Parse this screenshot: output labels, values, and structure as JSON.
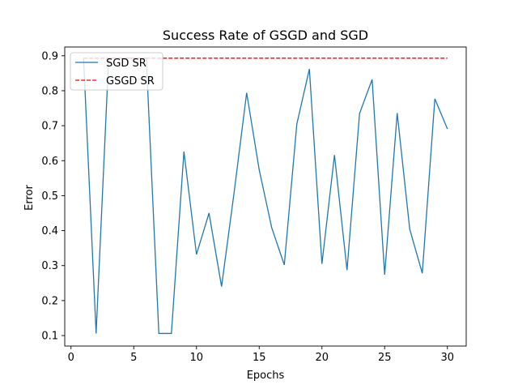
{
  "chart_data": {
    "type": "line",
    "title": "Success Rate of GSGD and SGD",
    "xlabel": "Epochs",
    "ylabel": "Error",
    "xlim": [
      -0.5,
      31.5
    ],
    "ylim": [
      0.07,
      0.925
    ],
    "xticks": [
      0,
      5,
      10,
      15,
      20,
      25,
      30
    ],
    "yticks": [
      0.1,
      0.2,
      0.3,
      0.4,
      0.5,
      0.6,
      0.7,
      0.8,
      0.9
    ],
    "grid": false,
    "legend_position": "top-left",
    "series": [
      {
        "name": "SGD SR",
        "color": "#1f77b4",
        "style": "solid",
        "x": [
          1,
          2,
          3,
          4,
          5,
          6,
          7,
          8,
          9,
          10,
          11,
          12,
          13,
          14,
          15,
          16,
          17,
          18,
          19,
          20,
          21,
          22,
          23,
          24,
          25,
          26,
          27,
          28,
          29,
          30
        ],
        "values": [
          0.893,
          0.106,
          0.893,
          0.893,
          0.893,
          0.893,
          0.106,
          0.106,
          0.626,
          0.332,
          0.45,
          0.24,
          0.509,
          0.794,
          0.574,
          0.408,
          0.302,
          0.705,
          0.862,
          0.305,
          0.616,
          0.287,
          0.735,
          0.832,
          0.274,
          0.736,
          0.404,
          0.278,
          0.777,
          0.691
        ]
      },
      {
        "name": "GSGD SR",
        "color": "#ff0000",
        "style": "dashed",
        "x": [
          1,
          30
        ],
        "values": [
          0.893,
          0.893
        ]
      }
    ]
  }
}
